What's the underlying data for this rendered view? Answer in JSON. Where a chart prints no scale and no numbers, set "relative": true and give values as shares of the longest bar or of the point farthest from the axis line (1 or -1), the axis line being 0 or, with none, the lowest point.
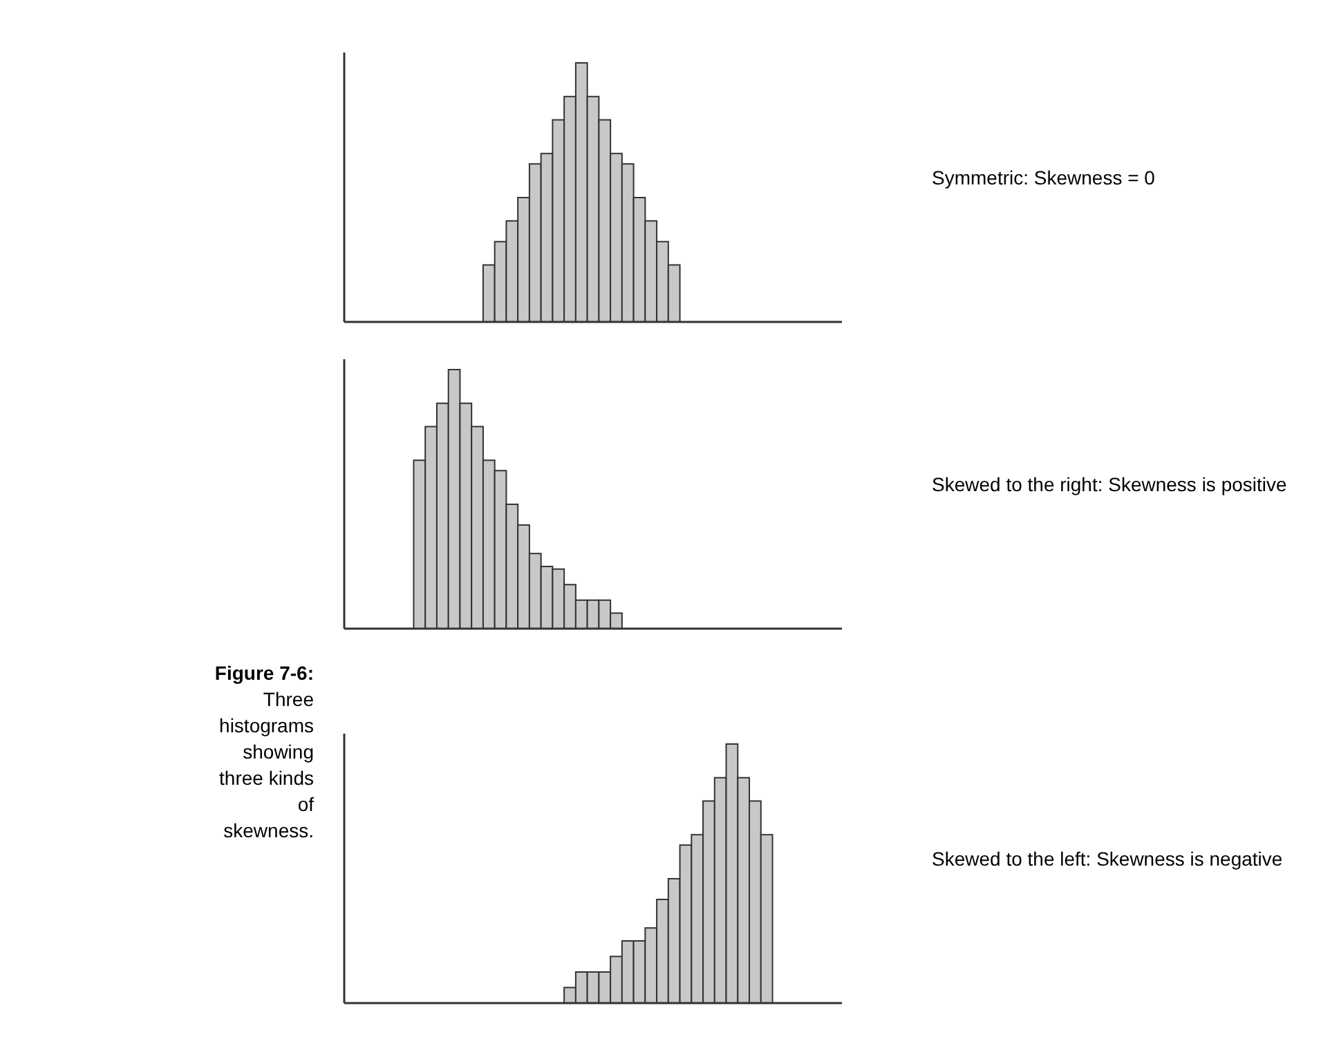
{
  "chart_data": [
    {
      "type": "bar",
      "relative": true,
      "tick_labels": false,
      "color": "#c8c8c8",
      "categories": [
        null,
        null,
        null,
        null,
        null,
        null,
        null,
        null,
        null,
        null,
        null,
        null,
        null,
        null,
        null,
        null,
        null
      ],
      "values": [
        0.22,
        0.31,
        0.39,
        0.48,
        0.61,
        0.65,
        0.78,
        0.87,
        1,
        0.87,
        0.78,
        0.65,
        0.61,
        0.48,
        0.39,
        0.31,
        0.22
      ],
      "annotations": [
        "Symmetric: Skewness = 0"
      ]
    },
    {
      "type": "bar",
      "relative": true,
      "tick_labels": false,
      "color": "#c8c8c8",
      "categories": [
        null,
        null,
        null,
        null,
        null,
        null,
        null,
        null,
        null,
        null,
        null,
        null,
        null,
        null,
        null,
        null,
        null,
        null
      ],
      "values": [
        0.65,
        0.78,
        0.87,
        1,
        0.87,
        0.78,
        0.65,
        0.61,
        0.48,
        0.4,
        0.29,
        0.24,
        0.23,
        0.17,
        0.11,
        0.11,
        0.11,
        0.06
      ],
      "annotations": [
        "Skewed to the right: Skewness is positive"
      ]
    },
    {
      "type": "bar",
      "relative": true,
      "tick_labels": false,
      "color": "#c8c8c8",
      "categories": [
        null,
        null,
        null,
        null,
        null,
        null,
        null,
        null,
        null,
        null,
        null,
        null,
        null,
        null,
        null,
        null,
        null,
        null
      ],
      "values": [
        0.06,
        0.12,
        0.12,
        0.12,
        0.18,
        0.24,
        0.24,
        0.29,
        0.4,
        0.48,
        0.61,
        0.65,
        0.78,
        0.87,
        1,
        0.87,
        0.78,
        0.65
      ],
      "annotations": [
        "Skewed to the left: Skewness is negative",
        "Figure 7-6:",
        "Three histograms showing three kinds of skewness."
      ]
    }
  ]
}
